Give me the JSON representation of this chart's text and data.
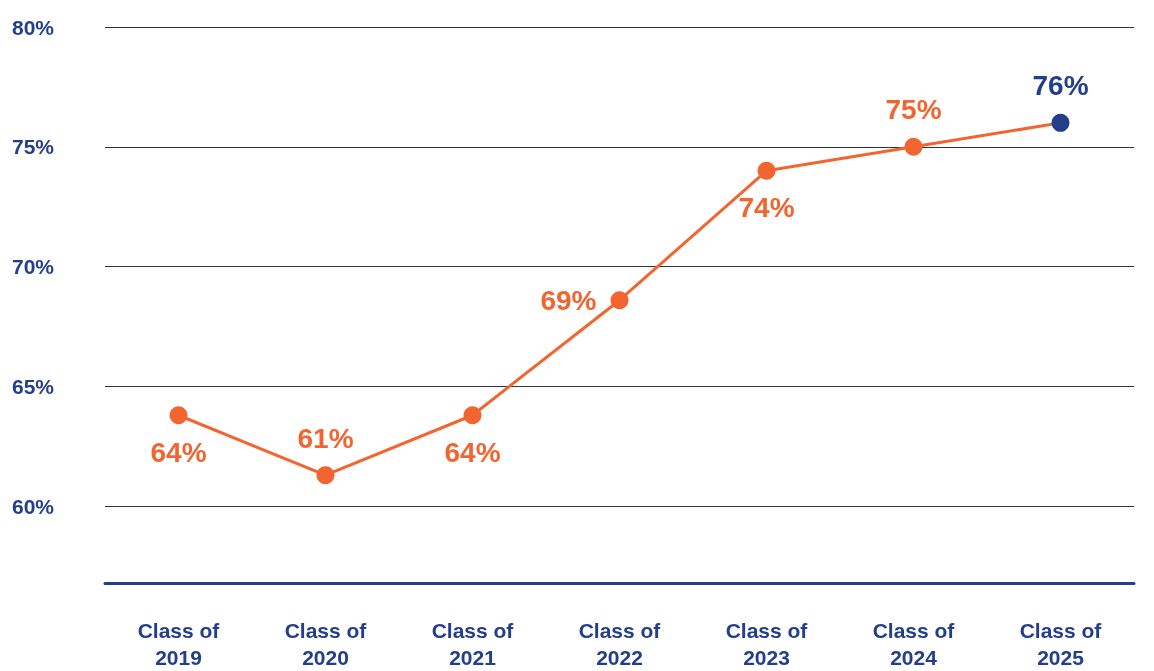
{
  "chart_data": {
    "type": "line",
    "categories": [
      "Class of 2019",
      "Class of 2020",
      "Class of 2021",
      "Class of 2022",
      "Class of 2023",
      "Class of 2024",
      "Class of 2025"
    ],
    "series": [
      {
        "color": "#f26531",
        "colors": [
          "#f26531",
          "#f26531",
          "#f26531",
          "#f26531",
          "#f26531",
          "#f26531",
          "#233e8b"
        ],
        "values": [
          63.8,
          61.3,
          63.8,
          68.6,
          74,
          75,
          76
        ],
        "value_labels": [
          "64%",
          "61%",
          "64%",
          "69%",
          "74%",
          "75%",
          "76%"
        ]
      }
    ],
    "ylim": [
      56.8,
      80
    ],
    "yticks": [
      {
        "value": 60,
        "label": "60%"
      },
      {
        "value": 65,
        "label": "65%"
      },
      {
        "value": 70,
        "label": "70%"
      },
      {
        "value": 75,
        "label": "75%"
      },
      {
        "value": 80,
        "label": "80%"
      }
    ],
    "grid": "y",
    "marker": "circle",
    "line_style": "solid"
  }
}
